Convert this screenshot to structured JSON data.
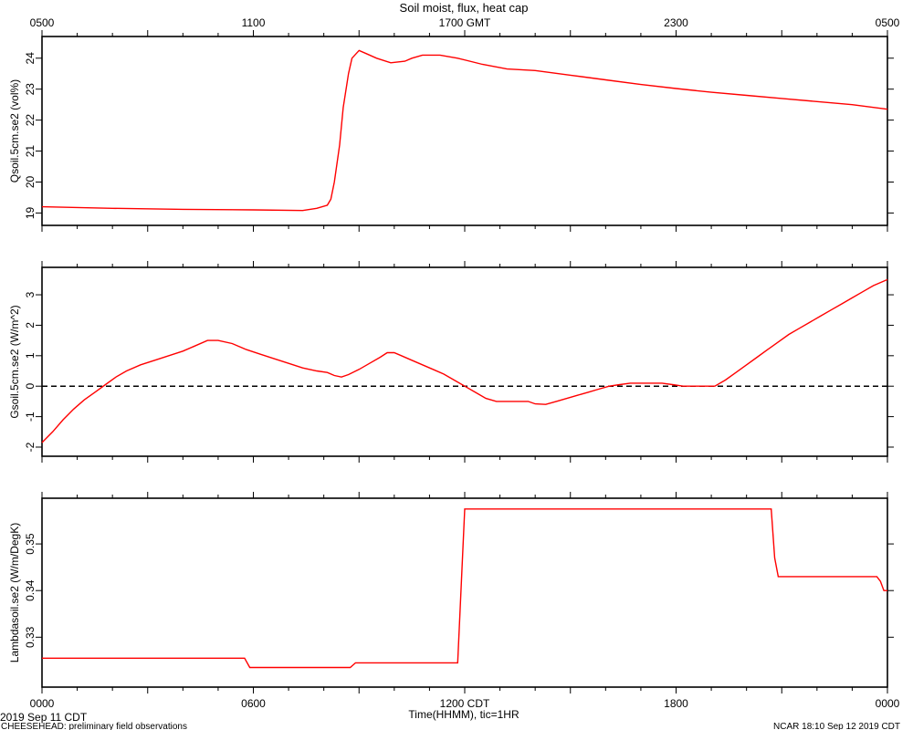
{
  "title": "Soil moist, flux, heat cap",
  "top_axis": {
    "tick_labels": [
      "0500",
      "1100",
      "1700 GMT",
      "2300",
      "0500"
    ]
  },
  "bottom_axis": {
    "tick_labels": [
      "0000",
      "0600",
      "1200 CDT",
      "1800",
      "0000"
    ],
    "xlabel": "Time(HHMM), tic=1HR",
    "start_date": "2019 Sep 11 CDT"
  },
  "footer": {
    "left": "CHEESEHEAD: preliminary field observations",
    "right": "NCAR 18:10 Sep 12 2019 CDT"
  },
  "colors": {
    "series": "#ff0000",
    "axes": "#000000",
    "zero_line": "#000000"
  },
  "chart_data": [
    {
      "type": "line",
      "ylabel": "Qsoil.5cm.se2 (vol%)",
      "ylim": [
        18.6,
        24.7
      ],
      "yticks": [
        19,
        20,
        21,
        22,
        23,
        24
      ],
      "xlim": [
        0,
        24
      ],
      "grid": false,
      "x": [
        0,
        2,
        4,
        6,
        7.4,
        7.8,
        8.1,
        8.2,
        8.3,
        8.45,
        8.55,
        8.7,
        8.8,
        9.0,
        9.2,
        9.5,
        9.9,
        10.3,
        10.5,
        10.8,
        11.3,
        11.8,
        12.5,
        13.2,
        14,
        15,
        16,
        17,
        18,
        19,
        20,
        21,
        22,
        23,
        24
      ],
      "series": [
        {
          "values": [
            19.2,
            19.15,
            19.12,
            19.1,
            19.08,
            19.15,
            19.25,
            19.45,
            20.0,
            21.2,
            22.4,
            23.5,
            24.0,
            24.25,
            24.15,
            24.0,
            23.85,
            23.9,
            24.0,
            24.1,
            24.1,
            24.0,
            23.8,
            23.65,
            23.6,
            23.45,
            23.3,
            23.15,
            23.02,
            22.9,
            22.8,
            22.7,
            22.6,
            22.5,
            22.35
          ]
        }
      ]
    },
    {
      "type": "line",
      "ylabel": "Gsoil.5cm.se2 (W/m^2)",
      "ylim": [
        -2.3,
        3.9
      ],
      "yticks": [
        -2,
        -1,
        0,
        1,
        2,
        3
      ],
      "xlim": [
        0,
        24
      ],
      "grid": false,
      "reference_line": 0,
      "x": [
        0,
        0.3,
        0.6,
        0.9,
        1.2,
        1.5,
        1.8,
        2.1,
        2.4,
        2.8,
        3.2,
        3.6,
        4.0,
        4.3,
        4.7,
        5.0,
        5.4,
        5.8,
        6.2,
        6.6,
        7.0,
        7.4,
        7.8,
        8.1,
        8.3,
        8.5,
        8.7,
        9.0,
        9.3,
        9.6,
        9.8,
        10.0,
        10.2,
        10.5,
        10.8,
        11.1,
        11.4,
        11.7,
        12.0,
        12.3,
        12.6,
        12.9,
        13.2,
        13.5,
        13.8,
        14.0,
        14.3,
        14.6,
        14.9,
        15.2,
        15.5,
        15.8,
        16.1,
        16.4,
        16.7,
        17.0,
        17.3,
        17.6,
        17.9,
        18.2,
        18.5,
        18.8,
        19.1,
        19.4,
        19.7,
        20.0,
        20.3,
        20.6,
        20.9,
        21.2,
        21.5,
        21.8,
        22.1,
        22.4,
        22.7,
        23.0,
        23.3,
        23.6,
        24.0
      ],
      "series": [
        {
          "values": [
            -1.85,
            -1.5,
            -1.1,
            -0.75,
            -0.45,
            -0.2,
            0.05,
            0.3,
            0.5,
            0.7,
            0.85,
            1.0,
            1.15,
            1.3,
            1.5,
            1.5,
            1.4,
            1.2,
            1.05,
            0.9,
            0.75,
            0.6,
            0.5,
            0.45,
            0.35,
            0.3,
            0.38,
            0.55,
            0.75,
            0.95,
            1.1,
            1.1,
            1.0,
            0.85,
            0.7,
            0.55,
            0.4,
            0.2,
            0.0,
            -0.2,
            -0.4,
            -0.5,
            -0.5,
            -0.5,
            -0.5,
            -0.58,
            -0.6,
            -0.5,
            -0.4,
            -0.3,
            -0.2,
            -0.1,
            0.0,
            0.05,
            0.1,
            0.1,
            0.1,
            0.1,
            0.05,
            0.0,
            0.0,
            0.0,
            0.0,
            0.2,
            0.45,
            0.7,
            0.95,
            1.2,
            1.45,
            1.7,
            1.9,
            2.1,
            2.3,
            2.5,
            2.7,
            2.9,
            3.1,
            3.3,
            3.5
          ]
        }
      ]
    },
    {
      "type": "line",
      "ylabel": "Lambdasoil.se2 (W/m/DegK)",
      "ylim": [
        0.3193,
        0.3598
      ],
      "yticks": [
        0.33,
        0.34,
        0.35
      ],
      "xlim": [
        0,
        24
      ],
      "grid": false,
      "x": [
        0,
        5.75,
        5.9,
        8.75,
        8.9,
        11.8,
        12.0,
        20.7,
        20.8,
        20.9,
        23.7,
        23.8,
        23.9,
        24.0
      ],
      "series": [
        {
          "values": [
            0.3255,
            0.3255,
            0.3235,
            0.3235,
            0.3245,
            0.3245,
            0.3575,
            0.3575,
            0.347,
            0.343,
            0.343,
            0.342,
            0.34,
            0.34
          ]
        }
      ]
    }
  ]
}
